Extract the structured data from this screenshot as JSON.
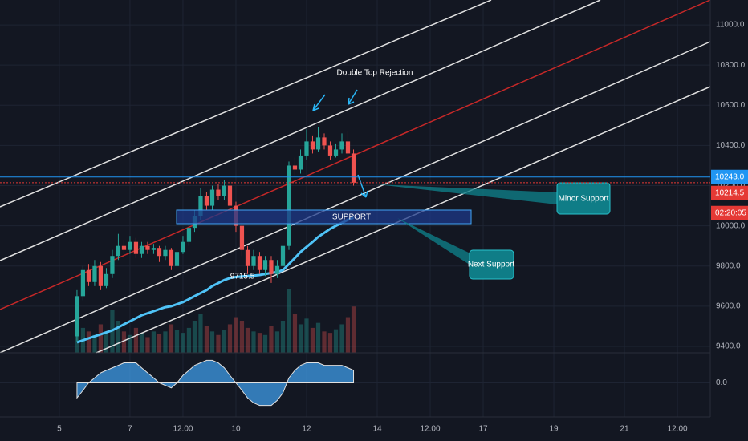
{
  "chart_data": {
    "type": "candlestick",
    "x": [
      5.5,
      5.67,
      5.83,
      6,
      6.17,
      6.33,
      6.5,
      6.67,
      6.83,
      7,
      7.17,
      7.33,
      7.5,
      7.67,
      7.83,
      8,
      8.17,
      8.33,
      8.5,
      8.67,
      8.83,
      9,
      9.17,
      9.33,
      9.5,
      9.67,
      9.83,
      10,
      10.17,
      10.33,
      10.5,
      10.67,
      10.83,
      11,
      11.17,
      11.33,
      11.5,
      11.67,
      11.83,
      12,
      12.17,
      12.33,
      12.5,
      12.67,
      12.83,
      13,
      13.17,
      13.33
    ],
    "open": [
      9450,
      9650,
      9780,
      9720,
      9800,
      9700,
      9760,
      9850,
      9900,
      9880,
      9920,
      9860,
      9900,
      9880,
      9890,
      9850,
      9880,
      9800,
      9870,
      9920,
      9990,
      10050,
      10150,
      10100,
      10180,
      10150,
      10200,
      10100,
      10000,
      9880,
      9800,
      9850,
      9780,
      9830,
      9760,
      9800,
      9900,
      10300,
      10280,
      10350,
      10420,
      10380,
      10440,
      10400,
      10350,
      10380,
      10420,
      10360
    ],
    "high": [
      9680,
      9800,
      9810,
      9830,
      9820,
      9790,
      9880,
      9960,
      9930,
      9950,
      9940,
      9920,
      9920,
      9910,
      9900,
      9900,
      9890,
      9890,
      9950,
      10010,
      10080,
      10190,
      10170,
      10200,
      10210,
      10230,
      10210,
      10120,
      10020,
      9900,
      9880,
      9870,
      9850,
      9850,
      9830,
      9920,
      10320,
      10340,
      10380,
      10480,
      10450,
      10490,
      10460,
      10420,
      10410,
      10460,
      10470,
      10380
    ],
    "low": [
      9420,
      9630,
      9700,
      9700,
      9680,
      9690,
      9740,
      9830,
      9860,
      9860,
      9840,
      9840,
      9860,
      9860,
      9820,
      9830,
      9780,
      9790,
      9860,
      9900,
      9970,
      10030,
      10080,
      10080,
      10130,
      10130,
      10080,
      9970,
      9850,
      9760,
      9780,
      9760,
      9750,
      9715.5,
      9740,
      9780,
      9880,
      10250,
      10260,
      10330,
      10360,
      10370,
      10380,
      10330,
      10340,
      10360,
      10340,
      10200
    ],
    "close": [
      9650,
      9780,
      9720,
      9800,
      9700,
      9760,
      9850,
      9900,
      9880,
      9920,
      9860,
      9900,
      9880,
      9890,
      9850,
      9880,
      9800,
      9870,
      9920,
      9990,
      10050,
      10150,
      10100,
      10180,
      10150,
      10200,
      10100,
      10000,
      9880,
      9800,
      9850,
      9780,
      9830,
      9760,
      9800,
      9900,
      10300,
      10280,
      10350,
      10420,
      10380,
      10440,
      10400,
      10350,
      10380,
      10420,
      10360,
      10214.5
    ],
    "volume": [
      70,
      35,
      30,
      25,
      40,
      28,
      60,
      45,
      30,
      25,
      35,
      28,
      22,
      30,
      26,
      30,
      40,
      32,
      28,
      35,
      45,
      55,
      38,
      30,
      25,
      32,
      40,
      50,
      45,
      35,
      30,
      28,
      25,
      38,
      30,
      45,
      90,
      55,
      40,
      48,
      35,
      42,
      30,
      28,
      33,
      40,
      50,
      65
    ],
    "moving_average": {
      "color": "#4fc3f7",
      "values": [
        9420,
        9430,
        9440,
        9450,
        9460,
        9470,
        9480,
        9495,
        9510,
        9525,
        9540,
        9555,
        9565,
        9575,
        9585,
        9595,
        9600,
        9610,
        9620,
        9635,
        9650,
        9665,
        9680,
        9700,
        9715,
        9730,
        9740,
        9745,
        9748,
        9750,
        9752,
        9755,
        9760,
        9765,
        9770,
        9780,
        9810,
        9840,
        9870,
        9895,
        9920,
        9945,
        9965,
        9985,
        10000,
        10015,
        10030,
        10040
      ]
    },
    "oscillator": {
      "color": "#42a5f5",
      "ylim": [
        -1.2,
        1.2
      ],
      "yticks": [
        {
          "value": 0,
          "label": "0.0"
        }
      ],
      "values": [
        -0.6,
        -0.3,
        0,
        0.2,
        0.4,
        0.5,
        0.6,
        0.7,
        0.8,
        0.8,
        0.8,
        0.6,
        0.4,
        0.2,
        0,
        -0.1,
        -0.2,
        0,
        0.3,
        0.5,
        0.7,
        0.8,
        0.9,
        0.9,
        0.8,
        0.6,
        0.3,
        0,
        -0.3,
        -0.6,
        -0.8,
        -0.9,
        -0.9,
        -0.9,
        -0.7,
        -0.4,
        0.2,
        0.5,
        0.7,
        0.8,
        0.8,
        0.8,
        0.7,
        0.7,
        0.7,
        0.7,
        0.6,
        0.5
      ]
    },
    "up_color": "#26a69a",
    "down_color": "#ef5350",
    "xlim": [
      3.32,
      23.43
    ],
    "xticks": [
      5,
      7,
      {
        "value": 8.5,
        "label": "12:00"
      },
      10,
      12,
      14,
      {
        "value": 15.5,
        "label": "12:00"
      },
      17,
      19,
      21,
      {
        "value": 22.5,
        "label": "12:00"
      }
    ],
    "ylim": [
      9368,
      11124
    ],
    "yticks": [
      {
        "value": 9400,
        "label": "9400.0"
      },
      {
        "value": 9600,
        "label": "9600.0"
      },
      {
        "value": 9800,
        "label": "9800.0"
      },
      {
        "value": 10000,
        "label": "10000.0"
      },
      {
        "value": 10200,
        "label": "10200.0"
      },
      {
        "value": 10400,
        "label": "10400.0"
      },
      {
        "value": 10600,
        "label": "10600.0"
      },
      {
        "value": 10800,
        "label": "10800.0"
      },
      {
        "value": 11000,
        "label": "11000.0"
      }
    ],
    "grid": true,
    "price_lines": [
      {
        "value": 10243,
        "label": "10243.0",
        "color": "#2196f3"
      },
      {
        "value": 10214.5,
        "label": "10214.5",
        "color": "#e53935"
      }
    ],
    "countdown": "02:20:05",
    "low_annotation": 9715.5,
    "annotations": [
      "Double Top Rejection",
      "SUPPORT",
      "Minor Support",
      "Next Support"
    ]
  }
}
